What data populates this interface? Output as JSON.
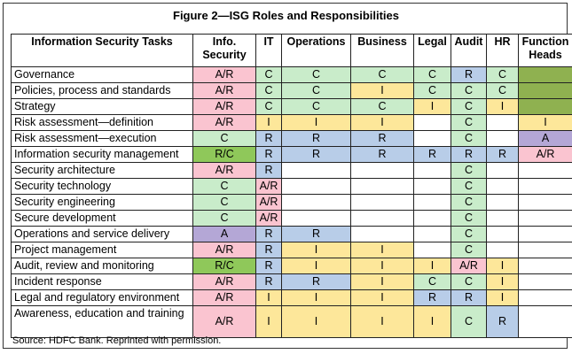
{
  "title": "Figure 2—ISG Roles and Responsibilities",
  "source": "Source:  HDFC Bank. Reprinted with permission.",
  "colors": {
    "AR": "#fac4d0",
    "C": "#c9ecca",
    "I": "#fde79a",
    "R": "#b8cde8",
    "A": "#b4a7d6",
    "RC": "#8fc85a",
    "owner_fill": "#8fb150"
  },
  "columns": [
    "Information Security Tasks",
    "Info. Security",
    "IT",
    "Operations",
    "Business",
    "Legal",
    "Audit",
    "HR",
    "Function Heads"
  ],
  "rows": [
    {
      "task": "Governance",
      "cells": [
        {
          "v": "A/R",
          "c": "pink"
        },
        {
          "v": "C",
          "c": "green"
        },
        {
          "v": "C",
          "c": "green"
        },
        {
          "v": "C",
          "c": "green"
        },
        {
          "v": "C",
          "c": "green"
        },
        {
          "v": "R",
          "c": "blue"
        },
        {
          "v": "C",
          "c": "green"
        },
        {
          "v": "",
          "c": "olive"
        }
      ]
    },
    {
      "task": "Policies, process and standards",
      "cells": [
        {
          "v": "A/R",
          "c": "pink"
        },
        {
          "v": "C",
          "c": "green"
        },
        {
          "v": "C",
          "c": "green"
        },
        {
          "v": "I",
          "c": "yellow"
        },
        {
          "v": "C",
          "c": "green"
        },
        {
          "v": "C",
          "c": "green"
        },
        {
          "v": "C",
          "c": "green"
        },
        {
          "v": "",
          "c": "olive"
        }
      ]
    },
    {
      "task": "Strategy",
      "cells": [
        {
          "v": "A/R",
          "c": "pink"
        },
        {
          "v": "C",
          "c": "green"
        },
        {
          "v": "C",
          "c": "green"
        },
        {
          "v": "C",
          "c": "green"
        },
        {
          "v": "I",
          "c": "yellow"
        },
        {
          "v": "C",
          "c": "green"
        },
        {
          "v": "I",
          "c": "yellow"
        },
        {
          "v": "",
          "c": "olive"
        }
      ]
    },
    {
      "task": "Risk assessment—definition",
      "cells": [
        {
          "v": "A/R",
          "c": "pink"
        },
        {
          "v": "I",
          "c": "yellow"
        },
        {
          "v": "I",
          "c": "yellow"
        },
        {
          "v": "I",
          "c": "yellow"
        },
        {
          "v": "",
          "c": "none"
        },
        {
          "v": "C",
          "c": "green"
        },
        {
          "v": "",
          "c": "none"
        },
        {
          "v": "I",
          "c": "yellow"
        }
      ]
    },
    {
      "task": "Risk assessment—execution",
      "cells": [
        {
          "v": "C",
          "c": "green"
        },
        {
          "v": "R",
          "c": "blue"
        },
        {
          "v": "R",
          "c": "blue"
        },
        {
          "v": "R",
          "c": "blue"
        },
        {
          "v": "",
          "c": "none"
        },
        {
          "v": "C",
          "c": "green"
        },
        {
          "v": "",
          "c": "none"
        },
        {
          "v": "A",
          "c": "purple"
        }
      ]
    },
    {
      "task": "Information security management",
      "cells": [
        {
          "v": "R/C",
          "c": "bgreen"
        },
        {
          "v": "R",
          "c": "blue"
        },
        {
          "v": "R",
          "c": "blue"
        },
        {
          "v": "R",
          "c": "blue"
        },
        {
          "v": "R",
          "c": "blue"
        },
        {
          "v": "R",
          "c": "blue"
        },
        {
          "v": "R",
          "c": "blue"
        },
        {
          "v": "A/R",
          "c": "pink"
        }
      ]
    },
    {
      "task": "Security architecture",
      "cells": [
        {
          "v": "A/R",
          "c": "pink"
        },
        {
          "v": "R",
          "c": "blue"
        },
        {
          "v": "",
          "c": "none"
        },
        {
          "v": "",
          "c": "none"
        },
        {
          "v": "",
          "c": "none"
        },
        {
          "v": "C",
          "c": "green"
        },
        {
          "v": "",
          "c": "none"
        },
        {
          "v": "",
          "c": "none"
        }
      ]
    },
    {
      "task": "Security technology",
      "cells": [
        {
          "v": "C",
          "c": "green"
        },
        {
          "v": "A/R",
          "c": "pink"
        },
        {
          "v": "",
          "c": "none"
        },
        {
          "v": "",
          "c": "none"
        },
        {
          "v": "",
          "c": "none"
        },
        {
          "v": "C",
          "c": "green"
        },
        {
          "v": "",
          "c": "none"
        },
        {
          "v": "",
          "c": "none"
        }
      ]
    },
    {
      "task": "Security engineering",
      "cells": [
        {
          "v": "C",
          "c": "green"
        },
        {
          "v": "A/R",
          "c": "pink"
        },
        {
          "v": "",
          "c": "none"
        },
        {
          "v": "",
          "c": "none"
        },
        {
          "v": "",
          "c": "none"
        },
        {
          "v": "C",
          "c": "green"
        },
        {
          "v": "",
          "c": "none"
        },
        {
          "v": "",
          "c": "none"
        }
      ]
    },
    {
      "task": "Secure development",
      "cells": [
        {
          "v": "C",
          "c": "green"
        },
        {
          "v": "A/R",
          "c": "pink"
        },
        {
          "v": "",
          "c": "none"
        },
        {
          "v": "",
          "c": "none"
        },
        {
          "v": "",
          "c": "none"
        },
        {
          "v": "C",
          "c": "green"
        },
        {
          "v": "",
          "c": "none"
        },
        {
          "v": "",
          "c": "none"
        }
      ]
    },
    {
      "task": "Operations and service delivery",
      "cells": [
        {
          "v": "A",
          "c": "purple"
        },
        {
          "v": "R",
          "c": "blue"
        },
        {
          "v": "R",
          "c": "blue"
        },
        {
          "v": "",
          "c": "none"
        },
        {
          "v": "",
          "c": "none"
        },
        {
          "v": "C",
          "c": "green"
        },
        {
          "v": "",
          "c": "none"
        },
        {
          "v": "",
          "c": "none"
        }
      ]
    },
    {
      "task": "Project management",
      "cells": [
        {
          "v": "A/R",
          "c": "pink"
        },
        {
          "v": "R",
          "c": "blue"
        },
        {
          "v": "I",
          "c": "yellow"
        },
        {
          "v": "I",
          "c": "yellow"
        },
        {
          "v": "",
          "c": "none"
        },
        {
          "v": "C",
          "c": "green"
        },
        {
          "v": "",
          "c": "none"
        },
        {
          "v": "",
          "c": "none"
        }
      ]
    },
    {
      "task": "Audit, review and monitoring",
      "cells": [
        {
          "v": "R/C",
          "c": "bgreen"
        },
        {
          "v": "R",
          "c": "blue"
        },
        {
          "v": "I",
          "c": "yellow"
        },
        {
          "v": "I",
          "c": "yellow"
        },
        {
          "v": "I",
          "c": "yellow"
        },
        {
          "v": "A/R",
          "c": "pink"
        },
        {
          "v": "I",
          "c": "yellow"
        },
        {
          "v": "",
          "c": "none"
        }
      ]
    },
    {
      "task": "Incident response",
      "cells": [
        {
          "v": "A/R",
          "c": "pink"
        },
        {
          "v": "R",
          "c": "blue"
        },
        {
          "v": "R",
          "c": "blue"
        },
        {
          "v": "I",
          "c": "yellow"
        },
        {
          "v": "C",
          "c": "green"
        },
        {
          "v": "C",
          "c": "green"
        },
        {
          "v": "I",
          "c": "yellow"
        },
        {
          "v": "",
          "c": "none"
        }
      ]
    },
    {
      "task": "Legal and regulatory environment",
      "cells": [
        {
          "v": "A/R",
          "c": "pink"
        },
        {
          "v": "I",
          "c": "yellow"
        },
        {
          "v": "I",
          "c": "yellow"
        },
        {
          "v": "I",
          "c": "yellow"
        },
        {
          "v": "R",
          "c": "blue"
        },
        {
          "v": "R",
          "c": "blue"
        },
        {
          "v": "I",
          "c": "yellow"
        },
        {
          "v": "",
          "c": "none"
        }
      ]
    },
    {
      "task": "Awareness, education and training",
      "tall": true,
      "cells": [
        {
          "v": "A/R",
          "c": "pink"
        },
        {
          "v": "I",
          "c": "yellow"
        },
        {
          "v": "I",
          "c": "yellow"
        },
        {
          "v": "I",
          "c": "yellow"
        },
        {
          "v": "I",
          "c": "yellow"
        },
        {
          "v": "C",
          "c": "green"
        },
        {
          "v": "R",
          "c": "blue"
        },
        {
          "v": "",
          "c": "none"
        }
      ]
    }
  ]
}
